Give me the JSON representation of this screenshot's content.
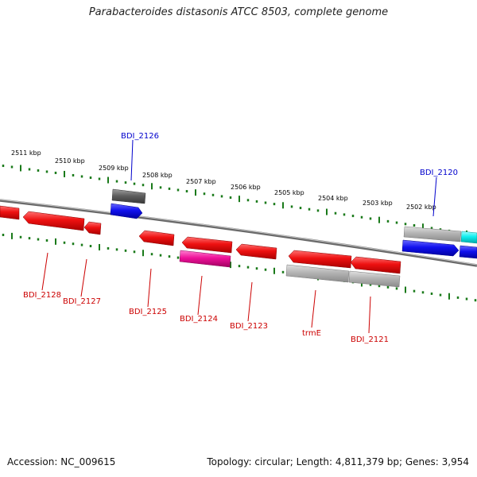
{
  "title": "Parabacteroides distasonis ATCC 8503, complete genome",
  "footer": {
    "accession": "Accession: NC_009615",
    "summary": "Topology: circular; Length: 4,811,379 bp; Genes: 3,954"
  },
  "scale_labels": [
    "2511 kbp",
    "2510 kbp",
    "2509 kbp",
    "2508 kbp",
    "2507 kbp",
    "2506 kbp",
    "2505 kbp",
    "2504 kbp",
    "2503 kbp",
    "2502 kbp"
  ],
  "gene_labels": {
    "top": [
      "BDI_2126",
      "BDI_2120"
    ],
    "bottom": [
      "BDI_2128",
      "BDI_2127",
      "BDI_2125",
      "BDI_2124",
      "BDI_2123",
      "trmE",
      "BDI_2121"
    ]
  },
  "colors": {
    "tick": "#1a7a1a",
    "red_gene": "#ee1111",
    "blue_gene": "#1111ee",
    "grey_gene": "#b4b4b4",
    "dark_grey_gene": "#606060",
    "magenta_gene": "#ee1199",
    "cyan_gene": "#11eeee",
    "top_label": "#0000cc",
    "bottom_label": "#cc0000",
    "backbone": "#888888"
  }
}
